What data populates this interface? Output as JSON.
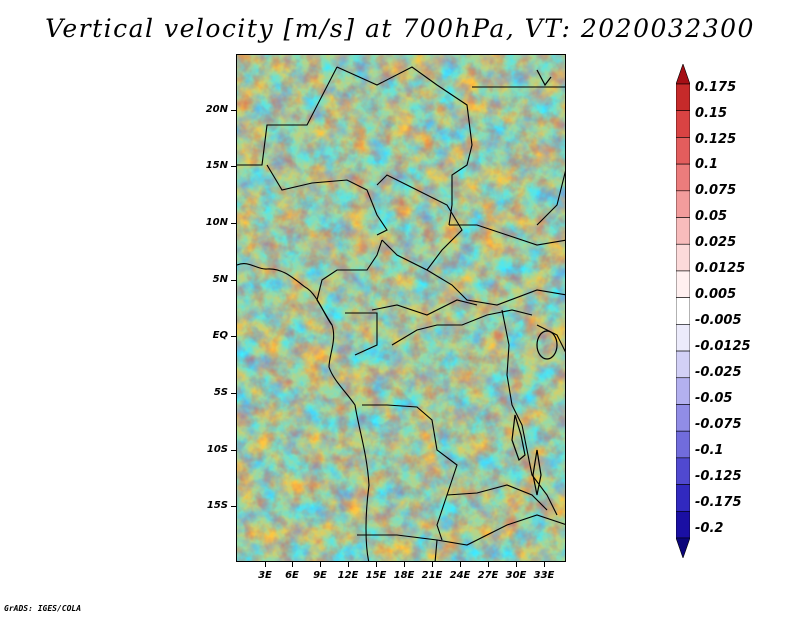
{
  "title": "Vertical velocity [m/s] at 700hPa, VT: 2020032300",
  "footer": "GrADS: IGES/COLA",
  "map": {
    "variable": "Vertical velocity",
    "units": "m/s",
    "level": "700hPa",
    "valid_time": "2020032300",
    "lat_labels": [
      "20N",
      "15N",
      "10N",
      "5N",
      "EQ",
      "5S",
      "10S",
      "15S"
    ],
    "lon_labels": [
      "3E",
      "6E",
      "9E",
      "12E",
      "15E",
      "18E",
      "21E",
      "24E",
      "27E",
      "30E",
      "33E"
    ],
    "colorbar": {
      "labels": [
        "0.175",
        "0.15",
        "0.125",
        "0.1",
        "0.075",
        "0.05",
        "0.025",
        "0.0125",
        "0.005",
        "-0.005",
        "-0.0125",
        "-0.025",
        "-0.05",
        "-0.075",
        "-0.1",
        "-0.125",
        "-0.175",
        "-0.2"
      ],
      "colors": [
        "#a50f15",
        "#c62a2a",
        "#d94343",
        "#e35d5d",
        "#ec7c7c",
        "#f39c9c",
        "#f8bcbc",
        "#fcdada",
        "#fff0f0",
        "#ffffff",
        "#ecebfb",
        "#d2d0f6",
        "#b3b0ef",
        "#918de6",
        "#716cdc",
        "#5049d0",
        "#3129bf",
        "#1a0fa3",
        "#0b057a"
      ]
    }
  }
}
